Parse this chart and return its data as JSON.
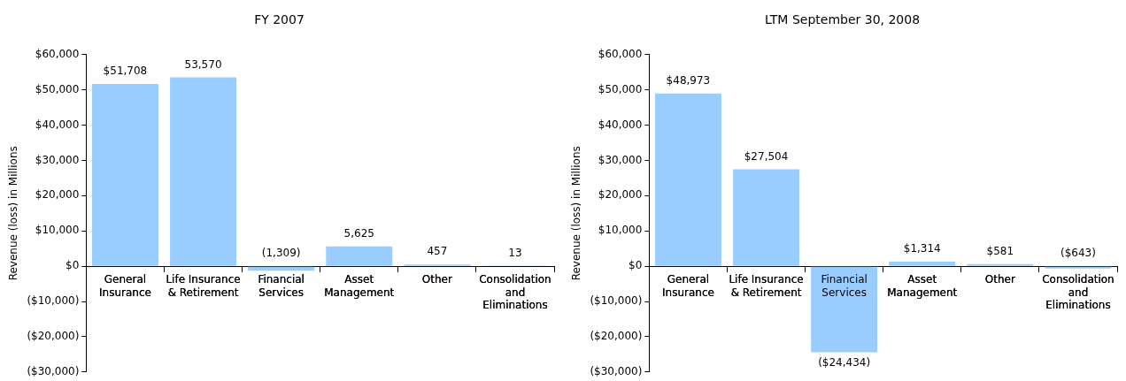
{
  "chart_data": [
    {
      "type": "bar",
      "title": "FY 2007",
      "ylabel": "Revenue (loss) in Millions",
      "categories": [
        "General Insurance",
        "Life Insurance & Retirement",
        "Financial Services",
        "Asset Management",
        "Other",
        "Consolidation and Eliminations"
      ],
      "values": [
        51708,
        53570,
        -1309,
        5625,
        457,
        13
      ],
      "value_labels": [
        "$51,708",
        "53,570",
        "(1,309)",
        "5,625",
        "457",
        "13"
      ],
      "color": "#99ccff",
      "ylim": [
        -30000,
        60000
      ],
      "yticks": [
        {
          "value": -30000,
          "label": "($30,000)"
        },
        {
          "value": -20000,
          "label": "($20,000)"
        },
        {
          "value": -10000,
          "label": "($10,000)"
        },
        {
          "value": 0,
          "label": "$0"
        },
        {
          "value": 10000,
          "label": "$10,000"
        },
        {
          "value": 20000,
          "label": "$20,000"
        },
        {
          "value": 30000,
          "label": "$30,000"
        },
        {
          "value": 40000,
          "label": "$40,000"
        },
        {
          "value": 50000,
          "label": "$50,000"
        },
        {
          "value": 60000,
          "label": "$60,000"
        }
      ],
      "grid": false,
      "legend": false
    },
    {
      "type": "bar",
      "title": "LTM September 30, 2008",
      "ylabel": "Revenue (loss) in Millions",
      "categories": [
        "General Insurance",
        "Life Insurance & Retirement",
        "Financial Services",
        "Asset Management",
        "Other",
        "Consolidation and Eliminations"
      ],
      "values": [
        48973,
        27504,
        -24434,
        1314,
        581,
        -643
      ],
      "value_labels": [
        "$48,973",
        "$27,504",
        "($24,434)",
        "$1,314",
        "$581",
        "($643)"
      ],
      "color": "#99ccff",
      "ylim": [
        -30000,
        60000
      ],
      "yticks": [
        {
          "value": -30000,
          "label": "($30,000)"
        },
        {
          "value": -20000,
          "label": "($20,000)"
        },
        {
          "value": -10000,
          "label": "($10,000)"
        },
        {
          "value": 0,
          "label": "$0"
        },
        {
          "value": 10000,
          "label": "$10,000"
        },
        {
          "value": 20000,
          "label": "$20,000"
        },
        {
          "value": 30000,
          "label": "$30,000"
        },
        {
          "value": 40000,
          "label": "$40,000"
        },
        {
          "value": 50000,
          "label": "$50,000"
        },
        {
          "value": 60000,
          "label": "$60,000"
        }
      ],
      "grid": false,
      "legend": false
    }
  ]
}
